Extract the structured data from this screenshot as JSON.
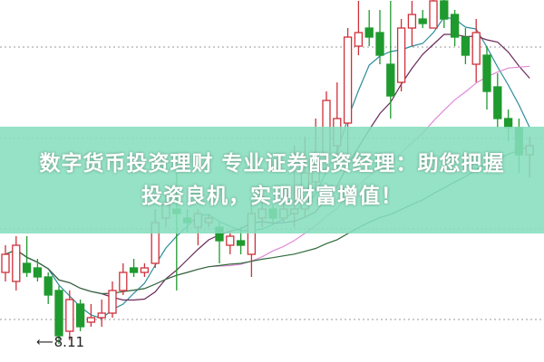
{
  "banner": {
    "line1": "数字货币投资理财 专业证券配资经理：助您把握",
    "line2": "投资良机，实现财富增值！"
  },
  "chart_data": {
    "type": "candlestick",
    "annotation": {
      "text": "8.11",
      "icon": "arrow-left-icon"
    },
    "colors": {
      "up": "#d0303a",
      "down": "#1e9a2e",
      "ma": [
        "#2a8c9a",
        "#6a2a5a",
        "#e08ad8",
        "#2e6a3a"
      ]
    },
    "grid": "dotted horizontal",
    "candles": [
      [
        8.9,
        9.1,
        9.2,
        8.8
      ],
      [
        8.8,
        9.2,
        9.3,
        8.7
      ],
      [
        9.0,
        8.9,
        9.3,
        8.85
      ],
      [
        8.95,
        8.85,
        9.05,
        8.8
      ],
      [
        8.85,
        8.65,
        8.9,
        8.55
      ],
      [
        8.7,
        8.2,
        8.75,
        8.11
      ],
      [
        8.25,
        8.6,
        8.7,
        8.15
      ],
      [
        8.55,
        8.3,
        8.6,
        8.25
      ],
      [
        8.35,
        8.4,
        8.55,
        8.3
      ],
      [
        8.4,
        8.45,
        8.6,
        8.3
      ],
      [
        8.45,
        8.7,
        8.8,
        8.4
      ],
      [
        8.7,
        8.9,
        9.0,
        8.65
      ],
      [
        8.95,
        8.9,
        9.05,
        8.85
      ],
      [
        8.9,
        8.95,
        9.0,
        8.85
      ],
      [
        9.0,
        9.45,
        9.6,
        8.95
      ],
      [
        9.5,
        9.65,
        9.75,
        9.4
      ],
      [
        9.6,
        9.55,
        10.0,
        8.7
      ],
      [
        9.5,
        9.45,
        9.6,
        9.35
      ],
      [
        9.4,
        9.55,
        9.6,
        9.2
      ],
      [
        9.45,
        9.5,
        9.55,
        9.4
      ],
      [
        9.4,
        9.25,
        9.45,
        9.0
      ],
      [
        9.2,
        9.3,
        9.35,
        9.1
      ],
      [
        9.25,
        9.2,
        9.4,
        9.1
      ],
      [
        9.1,
        9.55,
        9.7,
        8.85
      ],
      [
        9.5,
        9.6,
        9.85,
        9.4
      ],
      [
        9.6,
        9.5,
        9.65,
        9.45
      ],
      [
        9.5,
        9.6,
        9.7,
        9.45
      ],
      [
        9.55,
        9.6,
        10.3,
        9.4
      ],
      [
        9.6,
        10.0,
        10.4,
        9.5
      ],
      [
        9.9,
        10.1,
        10.6,
        9.8
      ],
      [
        10.2,
        10.8,
        10.9,
        10.0
      ],
      [
        10.3,
        10.6,
        11.0,
        10.2
      ],
      [
        10.55,
        11.5,
        11.6,
        10.2
      ],
      [
        11.4,
        11.55,
        11.9,
        11.3
      ],
      [
        11.6,
        11.5,
        11.8,
        11.4
      ],
      [
        11.55,
        11.3,
        11.8,
        11.2
      ],
      [
        11.2,
        10.85,
        11.9,
        10.6
      ],
      [
        11.0,
        11.6,
        11.7,
        10.9
      ],
      [
        11.6,
        11.75,
        11.9,
        11.4
      ],
      [
        11.7,
        11.65,
        11.8,
        11.6
      ],
      [
        11.6,
        11.9,
        11.95,
        11.6
      ],
      [
        11.9,
        11.7,
        11.95,
        11.6
      ],
      [
        11.75,
        11.5,
        11.8,
        11.4
      ],
      [
        11.5,
        11.3,
        11.6,
        11.2
      ],
      [
        11.2,
        11.55,
        11.7,
        11.0
      ],
      [
        11.3,
        10.9,
        11.4,
        10.7
      ],
      [
        10.95,
        10.6,
        11.1,
        10.5
      ],
      [
        10.6,
        10.5,
        10.7,
        10.35
      ],
      [
        10.5,
        10.2,
        10.6,
        10.0
      ],
      [
        10.2,
        10.3,
        10.4,
        9.95
      ]
    ]
  }
}
